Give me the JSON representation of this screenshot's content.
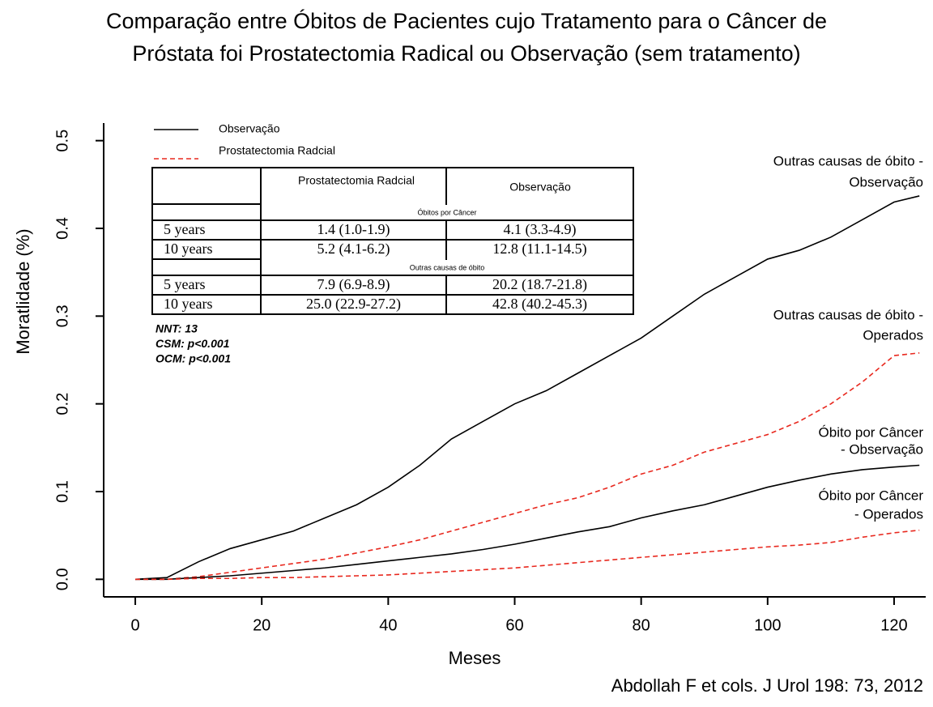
{
  "chart_data": {
    "type": "line",
    "title": [
      "Comparação entre Óbitos de Pacientes cujo Tratamento para o Câncer de",
      "Próstata foi Prostatectomia Radical ou Observação (sem tratamento)"
    ],
    "x_label": "Meses",
    "y_label": "Moratlidade (%)",
    "xlim": [
      -5,
      125
    ],
    "ylim": [
      -0.02,
      0.52
    ],
    "xticks": [
      0,
      20,
      40,
      60,
      80,
      100,
      120
    ],
    "yticks": [
      {
        "value": 0,
        "label": "0.0"
      },
      0.1,
      0.2,
      0.3,
      0.4,
      0.5
    ],
    "x": [
      0,
      5,
      10,
      15,
      20,
      25,
      30,
      35,
      40,
      45,
      50,
      55,
      60,
      65,
      70,
      75,
      80,
      85,
      90,
      95,
      100,
      105,
      110,
      115,
      120,
      124
    ],
    "legend": [
      {
        "name": "Observação",
        "color": "#000000",
        "dashed": false
      },
      {
        "name": "Prostatectomia Radcial",
        "color": "#e8281e",
        "dashed": true
      }
    ],
    "series": [
      {
        "label": [
          "Outras causas de óbito -",
          "Observação"
        ],
        "color": "#000000",
        "dashed": false,
        "values": [
          0,
          0.002,
          0.02,
          0.035,
          0.045,
          0.055,
          0.07,
          0.085,
          0.105,
          0.13,
          0.16,
          0.18,
          0.2,
          0.215,
          0.235,
          0.255,
          0.275,
          0.3,
          0.325,
          0.345,
          0.365,
          0.375,
          0.39,
          0.41,
          0.43,
          0.437
        ]
      },
      {
        "label": [
          "Outras causas de óbito -",
          "Operados"
        ],
        "color": "#e8281e",
        "dashed": true,
        "values": [
          0,
          0,
          0.003,
          0.008,
          0.013,
          0.018,
          0.023,
          0.03,
          0.037,
          0.045,
          0.055,
          0.065,
          0.075,
          0.085,
          0.093,
          0.105,
          0.12,
          0.13,
          0.145,
          0.155,
          0.165,
          0.18,
          0.2,
          0.225,
          0.255,
          0.258
        ]
      },
      {
        "label": [
          "Óbito por Câncer",
          "- Observação"
        ],
        "color": "#000000",
        "dashed": false,
        "values": [
          0,
          0,
          0.002,
          0.004,
          0.007,
          0.01,
          0.013,
          0.017,
          0.021,
          0.025,
          0.029,
          0.034,
          0.04,
          0.047,
          0.054,
          0.06,
          0.07,
          0.078,
          0.085,
          0.095,
          0.105,
          0.113,
          0.12,
          0.125,
          0.128,
          0.13
        ]
      },
      {
        "label": [
          "Óbito por Câncer",
          "- Operados"
        ],
        "color": "#e8281e",
        "dashed": true,
        "values": [
          0,
          0,
          0.001,
          0.001,
          0.002,
          0.002,
          0.003,
          0.004,
          0.005,
          0.007,
          0.009,
          0.011,
          0.013,
          0.016,
          0.019,
          0.022,
          0.025,
          0.028,
          0.031,
          0.034,
          0.037,
          0.039,
          0.042,
          0.048,
          0.053,
          0.056
        ]
      }
    ]
  },
  "table": {
    "header": [
      "Prostatectomia Radcial",
      "Observação"
    ],
    "sections": [
      {
        "title": "Óbitos por Câncer",
        "rows": [
          [
            "5 years",
            "1.4 (1.0-1.9)",
            "4.1 (3.3-4.9)"
          ],
          [
            "10 years",
            "5.2 (4.1-6.2)",
            "12.8 (11.1-14.5)"
          ]
        ]
      },
      {
        "title": "Outras causas de óbito",
        "rows": [
          [
            "5 years",
            "7.9 (6.9-8.9)",
            "20.2 (18.7-21.8)"
          ],
          [
            "10 years",
            "25.0 (22.9-27.2)",
            "42.8 (40.2-45.3)"
          ]
        ]
      }
    ]
  },
  "notes": [
    "NNT: 13",
    "CSM: p<0.001",
    "OCM: p<0.001"
  ],
  "caption": "Abdollah F et cols. J Urol 198: 73, 2012"
}
